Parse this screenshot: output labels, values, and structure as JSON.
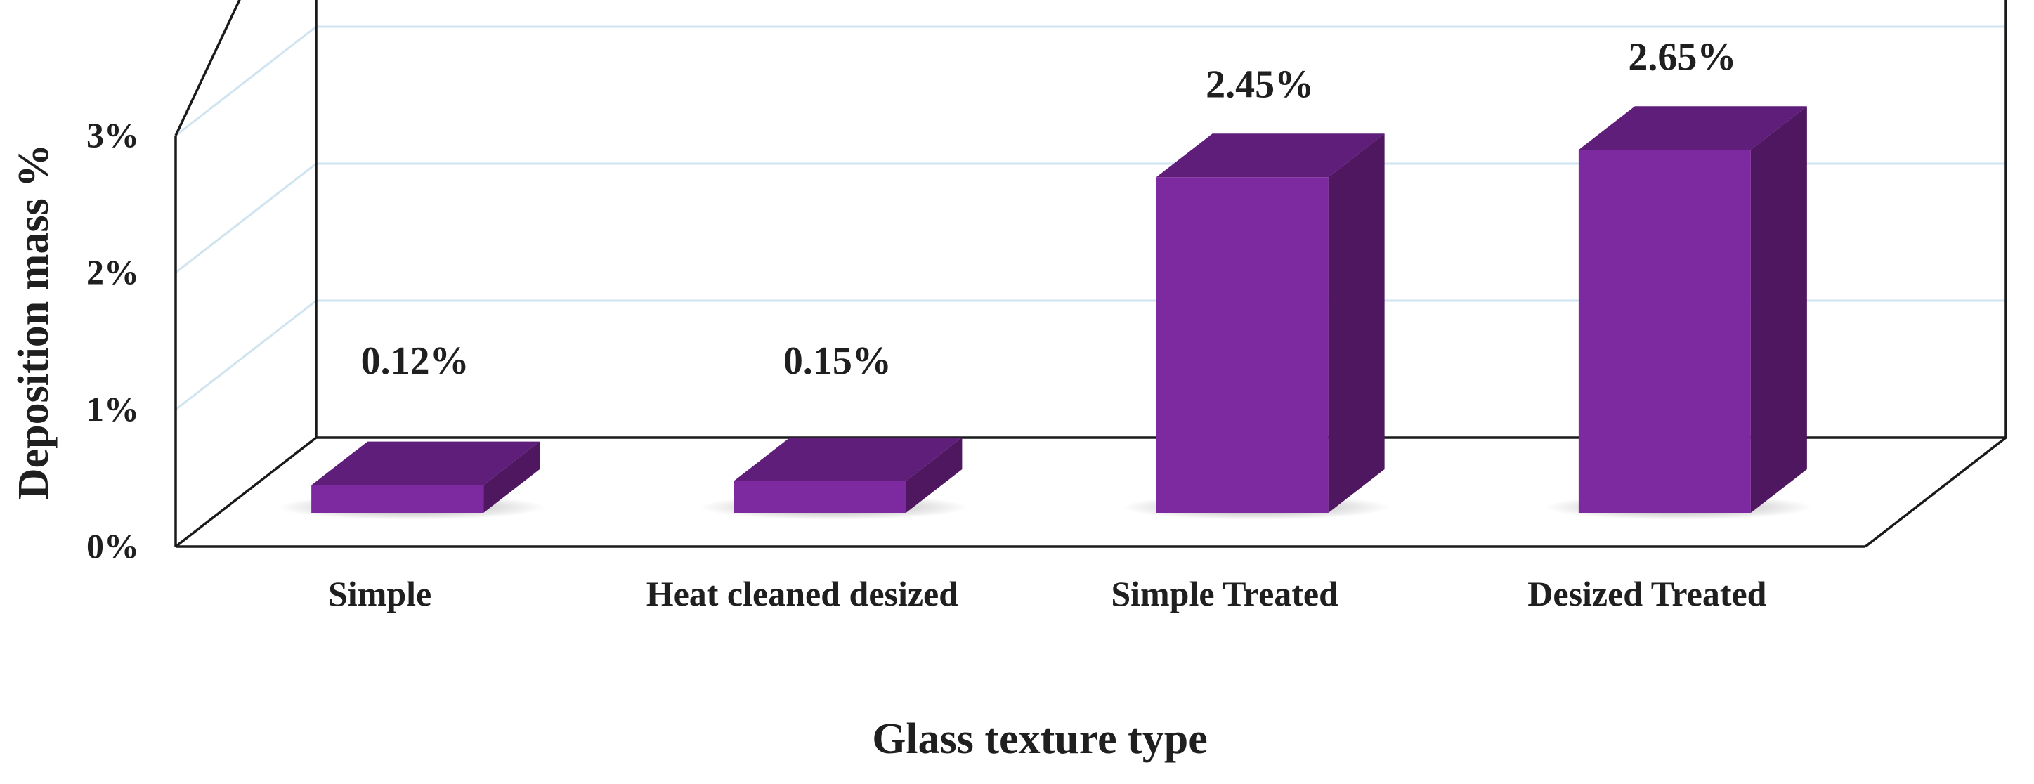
{
  "chart_data": {
    "type": "bar",
    "categories": [
      "Simple",
      "Heat cleaned desized",
      "Simple Treated",
      "Desized Treated"
    ],
    "values": [
      0.12,
      0.15,
      2.45,
      2.65
    ],
    "data_labels": [
      "0.12%",
      "0.15%",
      "2.45%",
      "2.65%"
    ],
    "xlabel": "Glass texture type",
    "ylabel": "Deposition mass %",
    "ylim": [
      0,
      3
    ],
    "yticks": [
      0,
      1,
      2,
      3
    ],
    "ytick_labels": [
      "0%",
      "1%",
      "2%",
      "3%"
    ],
    "grid": true,
    "style_3d": true,
    "colors": {
      "bar_front": "#7d2aa0",
      "bar_top": "#5f1e7a",
      "bar_side": "#4e1760",
      "grid": "#cfe4f0"
    }
  }
}
